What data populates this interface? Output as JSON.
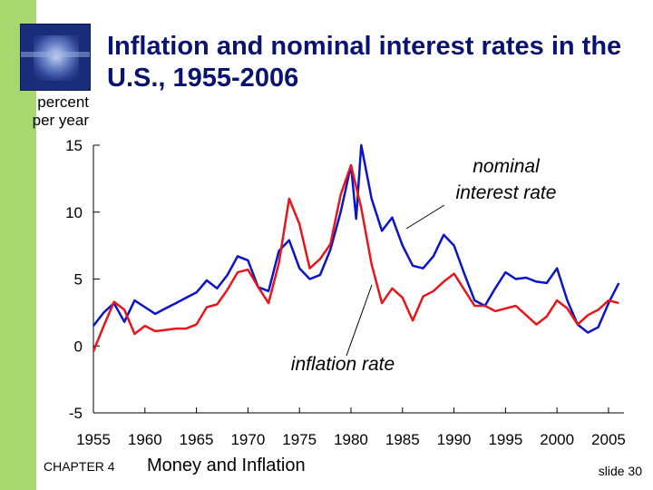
{
  "title": "Inflation and nominal interest rates in the U.S., 1955-2006",
  "footer": {
    "chapter": "CHAPTER 4",
    "topic": "Money and Inflation",
    "slide": "slide 30"
  },
  "colors": {
    "accent_stripe": "#a6d86e",
    "title": "#0a1470",
    "nominal": "#0a14c8",
    "inflation": "#e8161b"
  },
  "chart_data": {
    "type": "line",
    "title": "Inflation and nominal interest rates in the U.S., 1955-2006",
    "ylabel": "percent per year",
    "ylabel_lines": [
      "percent",
      "per year"
    ],
    "xlabel": "",
    "xlim": [
      1955,
      2006.5
    ],
    "ylim": [
      -5,
      15
    ],
    "yticks": [
      -5,
      0,
      5,
      10,
      15
    ],
    "xticks": [
      1955,
      1960,
      1965,
      1970,
      1975,
      1980,
      1985,
      1990,
      1995,
      2000,
      2005
    ],
    "annotations": [
      {
        "text": "nominal interest rate",
        "lines": [
          "nominal",
          "interest rate"
        ]
      },
      {
        "text": "inflation rate"
      }
    ],
    "series": [
      {
        "name": "nominal interest rate",
        "x": [
          1955,
          1956,
          1957,
          1958,
          1959,
          1960,
          1961,
          1962,
          1963,
          1964,
          1965,
          1966,
          1967,
          1968,
          1969,
          1970,
          1971,
          1972,
          1973,
          1974,
          1975,
          1976,
          1977,
          1978,
          1979,
          1980,
          1980.5,
          1981,
          1982,
          1983,
          1984,
          1985,
          1986,
          1987,
          1988,
          1989,
          1990,
          1991,
          1992,
          1993,
          1994,
          1995,
          1996,
          1997,
          1998,
          1999,
          2000,
          2001,
          2002,
          2003,
          2004,
          2005,
          2006
        ],
        "y": [
          1.5,
          2.5,
          3.2,
          1.8,
          3.4,
          2.9,
          2.4,
          2.8,
          3.2,
          3.6,
          4.0,
          4.9,
          4.3,
          5.3,
          6.7,
          6.4,
          4.4,
          4.1,
          7.1,
          7.9,
          5.8,
          5.0,
          5.3,
          7.2,
          10.0,
          13.5,
          9.5,
          15.0,
          11.0,
          8.6,
          9.6,
          7.5,
          6.0,
          5.8,
          6.7,
          8.3,
          7.5,
          5.4,
          3.4,
          3.0,
          4.3,
          5.5,
          5.0,
          5.1,
          4.8,
          4.7,
          5.8,
          3.4,
          1.6,
          1.0,
          1.4,
          3.2,
          4.7
        ]
      },
      {
        "name": "inflation rate",
        "x": [
          1955,
          1956,
          1957,
          1958,
          1959,
          1960,
          1961,
          1962,
          1963,
          1964,
          1965,
          1966,
          1967,
          1968,
          1969,
          1970,
          1971,
          1972,
          1973,
          1974,
          1975,
          1976,
          1977,
          1978,
          1979,
          1980,
          1981,
          1982,
          1983,
          1984,
          1985,
          1986,
          1987,
          1988,
          1989,
          1990,
          1991,
          1992,
          1993,
          1994,
          1995,
          1996,
          1997,
          1998,
          1999,
          2000,
          2001,
          2002,
          2003,
          2004,
          2005,
          2006
        ],
        "y": [
          -0.4,
          1.5,
          3.3,
          2.7,
          0.9,
          1.5,
          1.1,
          1.2,
          1.3,
          1.3,
          1.6,
          2.9,
          3.1,
          4.2,
          5.5,
          5.7,
          4.4,
          3.2,
          6.2,
          11.0,
          9.1,
          5.8,
          6.5,
          7.6,
          11.3,
          13.5,
          10.3,
          6.1,
          3.2,
          4.3,
          3.6,
          1.9,
          3.7,
          4.1,
          4.8,
          5.4,
          4.2,
          3.0,
          3.0,
          2.6,
          2.8,
          3.0,
          2.3,
          1.6,
          2.2,
          3.4,
          2.8,
          1.6,
          2.3,
          2.7,
          3.4,
          3.2
        ]
      }
    ]
  }
}
